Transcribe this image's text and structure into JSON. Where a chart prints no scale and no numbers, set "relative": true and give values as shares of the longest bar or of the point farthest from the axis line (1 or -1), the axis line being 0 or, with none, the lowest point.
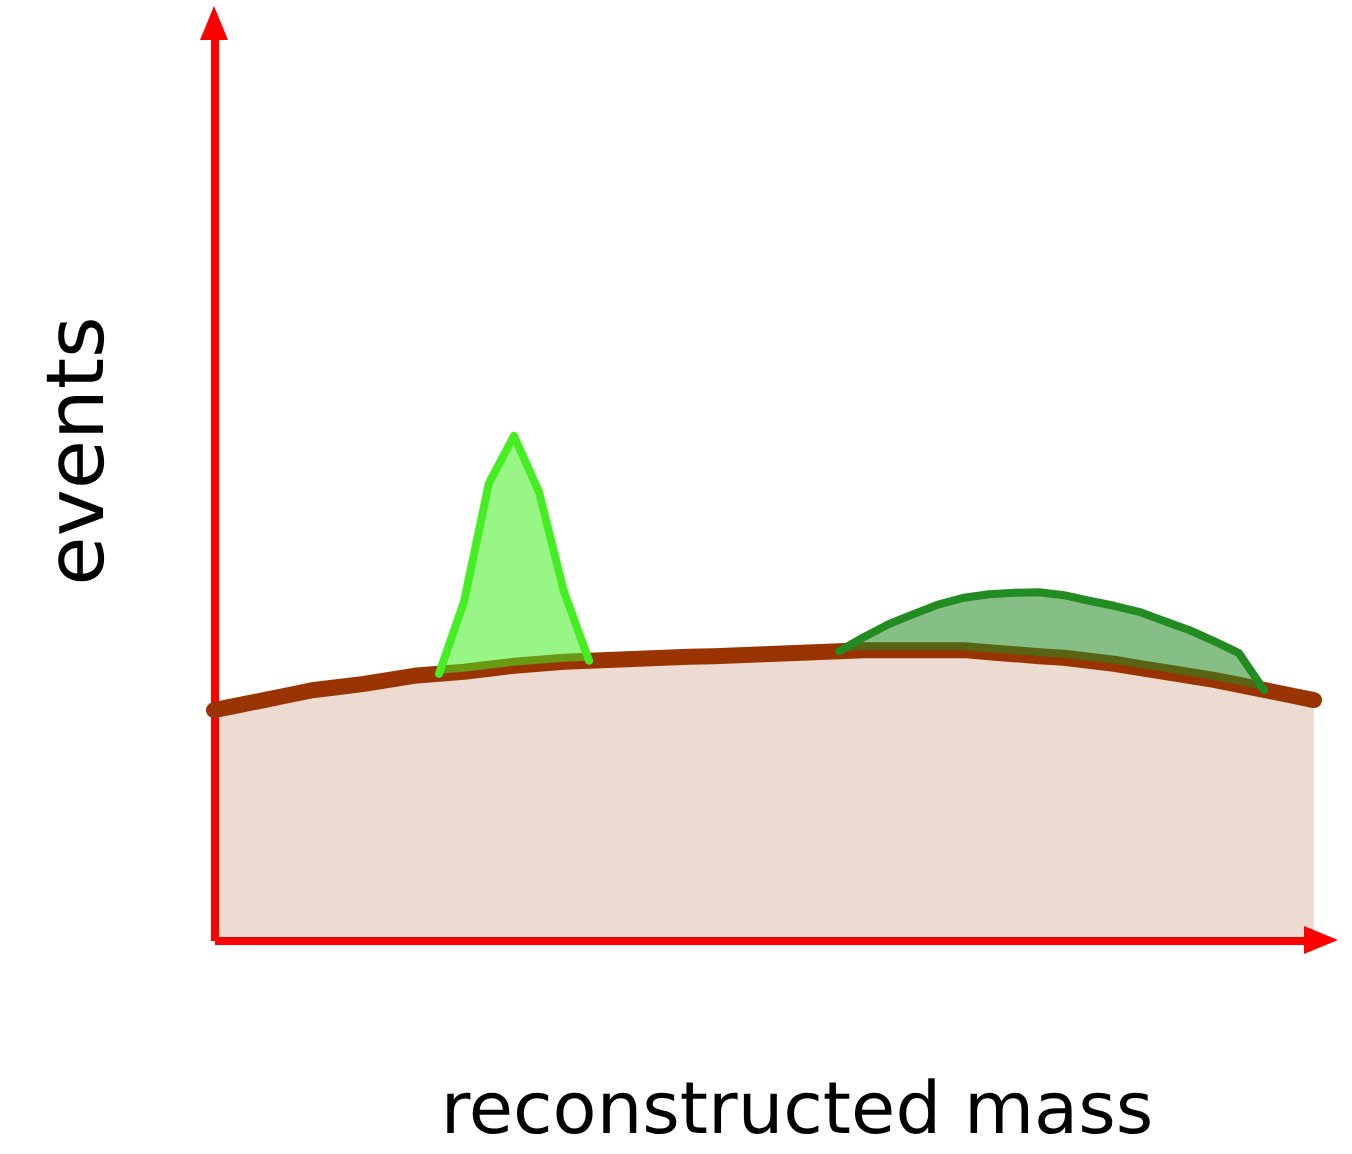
{
  "chart_data": {
    "type": "area",
    "relative": true,
    "stacked": true,
    "xlabel": "reconstructed mass",
    "ylabel": "events",
    "categories": [
      null,
      null,
      null,
      null,
      null,
      null,
      null,
      null,
      null,
      null,
      null,
      null,
      null,
      null,
      null,
      null,
      null,
      null,
      null,
      null,
      null,
      null,
      null,
      null,
      null,
      null,
      null,
      null,
      null,
      null,
      null,
      null,
      null,
      null,
      null,
      null,
      null,
      null,
      null,
      null,
      null,
      null,
      null,
      null,
      null
    ],
    "series": [
      {
        "color": "#993300",
        "values": [
          0.456,
          0.466,
          0.476,
          0.486,
          0.496,
          0.502,
          0.508,
          0.516,
          0.524,
          0.528,
          0.532,
          0.538,
          0.544,
          0.548,
          0.552,
          0.554,
          0.556,
          0.558,
          0.56,
          0.562,
          0.563,
          0.565,
          0.567,
          0.569,
          0.571,
          0.573,
          0.575,
          0.575,
          0.575,
          0.575,
          0.575,
          0.571,
          0.567,
          0.563,
          0.56,
          0.554,
          0.548,
          0.54,
          0.532,
          0.524,
          0.516,
          0.506,
          0.496,
          0.486,
          0.476
        ]
      },
      {
        "color": "#44ee22",
        "values": [
          null,
          null,
          null,
          null,
          null,
          null,
          null,
          null,
          null,
          0,
          0.139,
          0.369,
          0.456,
          0.341,
          0.139,
          0,
          null,
          null,
          null,
          null,
          null,
          null,
          null,
          null,
          null,
          null,
          null,
          null,
          null,
          null,
          null,
          null,
          null,
          null,
          null,
          null,
          null,
          null,
          null,
          null,
          null,
          null,
          null,
          null,
          null
        ]
      },
      {
        "color": "#228b22",
        "values": [
          null,
          null,
          null,
          null,
          null,
          null,
          null,
          null,
          null,
          null,
          null,
          null,
          null,
          null,
          null,
          null,
          null,
          null,
          null,
          null,
          null,
          null,
          null,
          null,
          null,
          0,
          0.026,
          0.052,
          0.072,
          0.091,
          0.104,
          0.115,
          0.122,
          0.127,
          0.124,
          0.119,
          0.115,
          0.111,
          0.101,
          0.091,
          0.077,
          0.063,
          0,
          null,
          null
        ]
      }
    ]
  }
}
